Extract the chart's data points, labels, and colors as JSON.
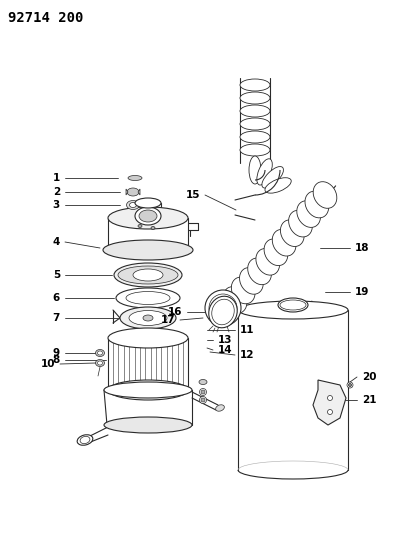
{
  "title": "92714 200",
  "bg_color": "#ffffff",
  "line_color": "#2a2a2a",
  "label_color": "#000000",
  "label_fontsize": 7.5,
  "fig_width": 4.05,
  "fig_height": 5.33,
  "dpi": 100
}
